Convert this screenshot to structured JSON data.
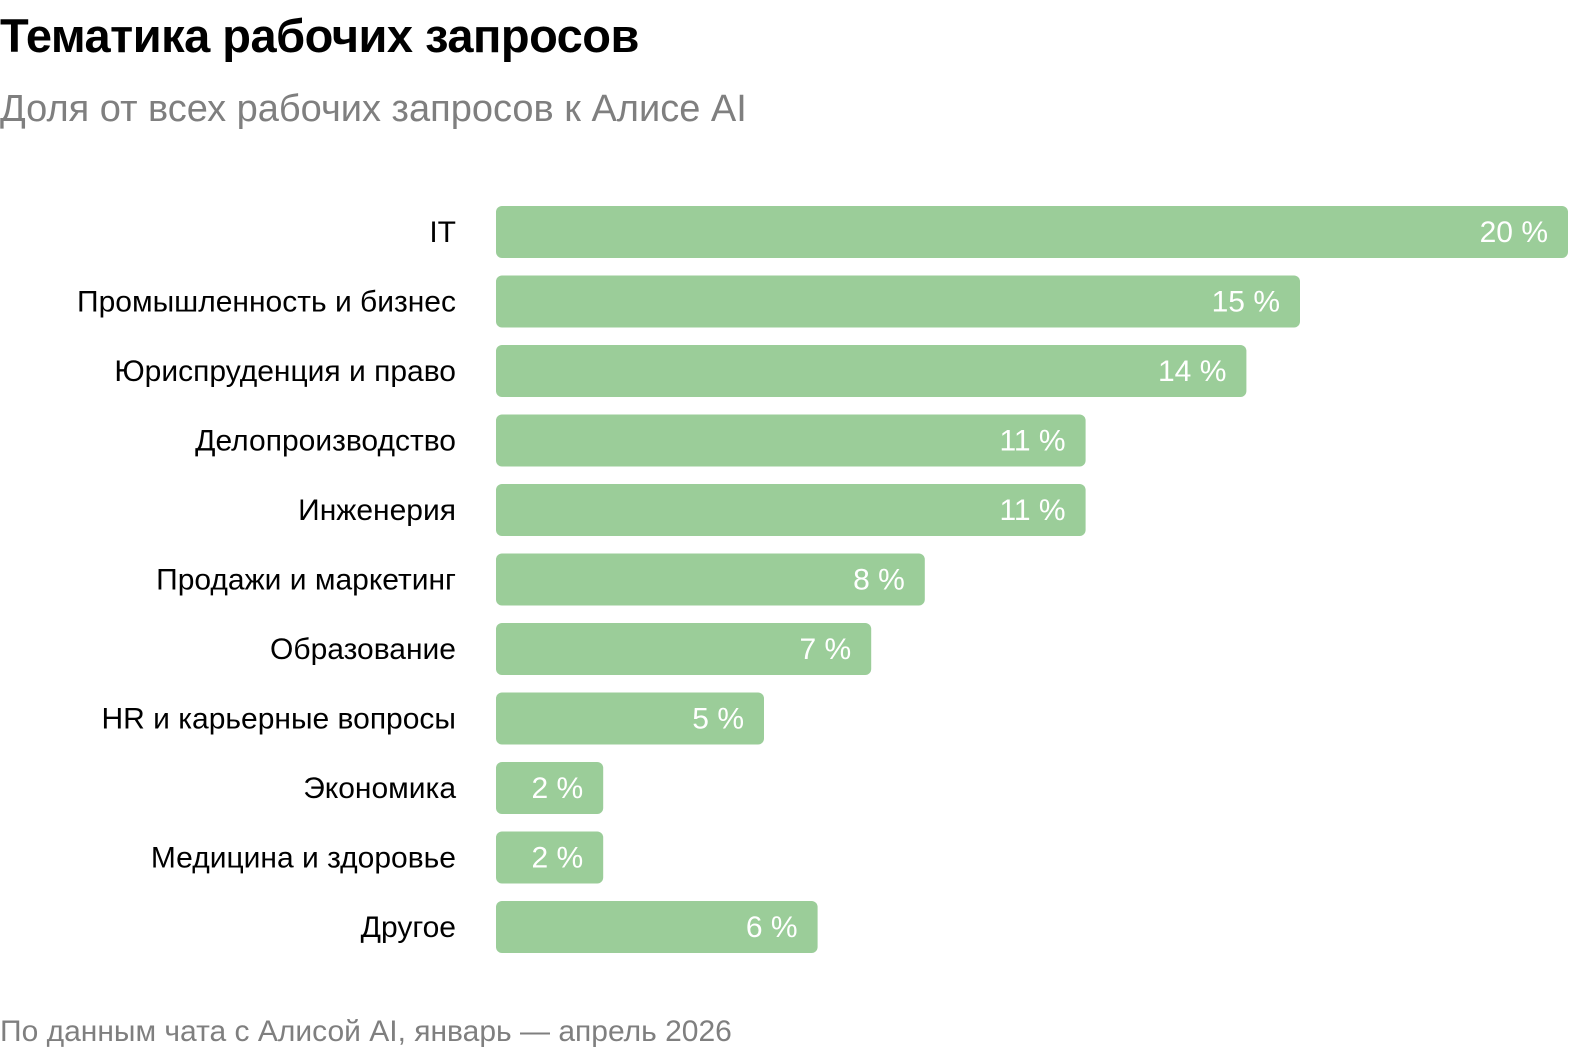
{
  "header": {
    "title": "Тематика рабочих запросов",
    "subtitle": "Доля от всех рабочих запросов к Алисе AI"
  },
  "footer": {
    "source": "По данным чата с Алисой AI, январь — апрель 2026"
  },
  "chart_data": {
    "type": "bar",
    "orientation": "horizontal",
    "title": "Тематика рабочих запросов",
    "subtitle": "Доля от всех рабочих запросов к Алисе AI",
    "categories": [
      "IT",
      "Промышленность и бизнес",
      "Юриспруденция и право",
      "Делопроизводство",
      "Инженерия",
      "Продажи и маркетинг",
      "Образование",
      "HR и карьерные вопросы",
      "Экономика",
      "Медицина и здоровье",
      "Другое"
    ],
    "values": [
      20,
      15,
      14,
      11,
      11,
      8,
      7,
      5,
      2,
      2,
      6
    ],
    "value_labels": [
      "20 %",
      "15 %",
      "14 %",
      "11 %",
      "11 %",
      "8 %",
      "7 %",
      "5 %",
      "2 %",
      "2 %",
      "6 %"
    ],
    "unit": "%",
    "xlim": [
      0,
      20
    ],
    "bar_color": "#9bcd99",
    "label_color": "#ffffff",
    "grid": false,
    "legend": "none"
  }
}
